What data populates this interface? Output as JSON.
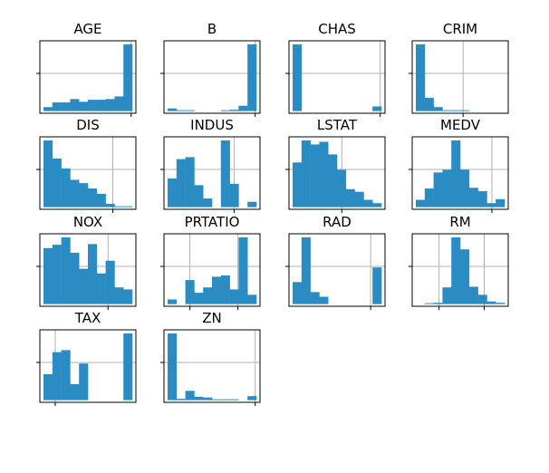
{
  "colors": {
    "bar": "#2b8cc4",
    "grid": "#b0b0b0",
    "frame": "#000000"
  },
  "chart_data": [
    {
      "type": "bar",
      "title": "AGE",
      "values": [
        0.06,
        0.13,
        0.13,
        0.18,
        0.14,
        0.17,
        0.17,
        0.18,
        0.22,
        1.0
      ],
      "grid": true
    },
    {
      "type": "bar",
      "title": "B",
      "values": [
        0.04,
        0.01,
        0.01,
        0.0,
        0.0,
        0.0,
        0.01,
        0.02,
        0.08,
        1.0
      ],
      "grid": true
    },
    {
      "type": "bar",
      "title": "CHAS",
      "values": [
        1.0,
        0,
        0,
        0,
        0,
        0,
        0,
        0,
        0,
        0.07
      ],
      "grid": true
    },
    {
      "type": "bar",
      "title": "CRIM",
      "values": [
        1.0,
        0.2,
        0.06,
        0.01,
        0.01,
        0.01,
        0,
        0,
        0,
        0
      ],
      "grid": true
    },
    {
      "type": "bar",
      "title": "DIS",
      "values": [
        1.0,
        0.73,
        0.58,
        0.41,
        0.36,
        0.28,
        0.2,
        0.05,
        0.01,
        0.01
      ],
      "grid": true
    },
    {
      "type": "bar",
      "title": "INDUS",
      "values": [
        0.43,
        0.72,
        0.75,
        0.33,
        0.13,
        0.0,
        1.0,
        0.35,
        0.0,
        0.08
      ],
      "grid": true
    },
    {
      "type": "bar",
      "title": "LSTAT",
      "values": [
        0.67,
        1.0,
        0.94,
        0.98,
        0.79,
        0.56,
        0.27,
        0.23,
        0.11,
        0.06
      ],
      "grid": true
    },
    {
      "type": "bar",
      "title": "MEDV",
      "values": [
        0.11,
        0.28,
        0.52,
        0.56,
        1.0,
        0.56,
        0.29,
        0.24,
        0.06,
        0.12
      ],
      "grid": true
    },
    {
      "type": "bar",
      "title": "NOX",
      "values": [
        0.84,
        0.89,
        1.0,
        0.77,
        0.53,
        0.9,
        0.46,
        0.65,
        0.25,
        0.22
      ],
      "grid": true
    },
    {
      "type": "bar",
      "title": "PRTATIO",
      "values": [
        0.07,
        0.0,
        0.36,
        0.17,
        0.25,
        0.41,
        0.43,
        0.22,
        1.0,
        0.14
      ],
      "grid": true
    },
    {
      "type": "bar",
      "title": "RAD",
      "values": [
        0.33,
        1.0,
        0.18,
        0.11,
        0.0,
        0.0,
        0.0,
        0.0,
        0.0,
        0.55
      ],
      "grid": true
    },
    {
      "type": "bar",
      "title": "RM",
      "values": [
        0.0,
        0.01,
        0.02,
        0.25,
        1.0,
        0.82,
        0.26,
        0.14,
        0.04,
        0.02
      ],
      "grid": true
    },
    {
      "type": "bar",
      "title": "TAX",
      "values": [
        0.39,
        0.72,
        0.75,
        0.24,
        0.55,
        0.0,
        0.0,
        0.0,
        0.0,
        1.0
      ],
      "grid": true
    },
    {
      "type": "bar",
      "title": "ZN",
      "values": [
        1.0,
        0.02,
        0.14,
        0.05,
        0.04,
        0.01,
        0.01,
        0.01,
        0.0,
        0.06
      ],
      "grid": true
    }
  ]
}
